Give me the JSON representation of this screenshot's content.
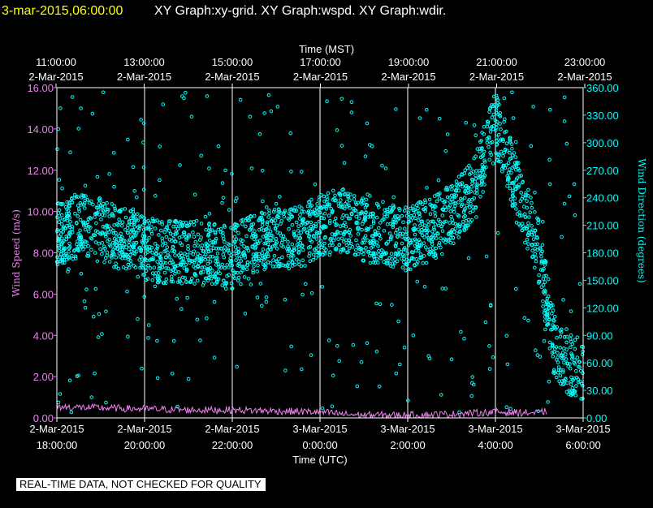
{
  "header": {
    "date": "3-mar-2015,06:00:00",
    "title": "XY Graph:xy-grid.  XY Graph:wspd.  XY Graph:wdir."
  },
  "banner": "REAL-TIME DATA, NOT CHECKED FOR QUALITY",
  "colors": {
    "background": "#000000",
    "frame": "#ffffff",
    "header_date": "#ffff00",
    "speed": "#ee82ee",
    "direction": "#00ffff",
    "grid": "#ffffff"
  },
  "chart_data": {
    "type": "scatter",
    "grid": "vertical",
    "x_top": {
      "label": "Time (MST)",
      "ticks": [
        {
          "time": "11:00:00",
          "date": "2-Mar-2015"
        },
        {
          "time": "13:00:00",
          "date": "2-Mar-2015"
        },
        {
          "time": "15:00:00",
          "date": "2-Mar-2015"
        },
        {
          "time": "17:00:00",
          "date": "2-Mar-2015"
        },
        {
          "time": "19:00:00",
          "date": "2-Mar-2015"
        },
        {
          "time": "21:00:00",
          "date": "2-Mar-2015"
        },
        {
          "time": "23:00:00",
          "date": "2-Mar-2015"
        }
      ]
    },
    "x_bottom": {
      "label": "Time (UTC)",
      "range": [
        "2015-03-02T18:00",
        "2015-03-03T06:00"
      ],
      "ticks": [
        {
          "date": "2-Mar-2015",
          "time": "18:00:00"
        },
        {
          "date": "2-Mar-2015",
          "time": "20:00:00"
        },
        {
          "date": "2-Mar-2015",
          "time": "22:00:00"
        },
        {
          "date": "3-Mar-2015",
          "time": "0:00:00"
        },
        {
          "date": "3-Mar-2015",
          "time": "2:00:00"
        },
        {
          "date": "3-Mar-2015",
          "time": "4:00:00"
        },
        {
          "date": "3-Mar-2015",
          "time": "6:00:00"
        }
      ]
    },
    "y_left": {
      "label": "Wind Speed (m/s)",
      "range": [
        0,
        16
      ],
      "ticks": [
        "0.00",
        "2.00",
        "4.00",
        "6.00",
        "8.00",
        "10.00",
        "12.00",
        "14.00",
        "16.00"
      ]
    },
    "y_right": {
      "label": "Wind Direction (degrees)",
      "range": [
        0,
        360
      ],
      "ticks": [
        "0.00",
        "30.00",
        "60.00",
        "90.00",
        "120.00",
        "150.00",
        "180.00",
        "210.00",
        "240.00",
        "270.00",
        "300.00",
        "330.00",
        "360.00"
      ]
    },
    "series": [
      {
        "key": "wspd",
        "axis": "left",
        "style": "line",
        "x": [
          "2015-03-02T18:00",
          "2015-03-02T19:00",
          "2015-03-02T20:00",
          "2015-03-02T21:00",
          "2015-03-02T22:00",
          "2015-03-02T23:00",
          "2015-03-03T00:00",
          "2015-03-03T00:30",
          "2015-03-03T01:00",
          "2015-03-03T02:00",
          "2015-03-03T03:00",
          "2015-03-03T04:00",
          "2015-03-03T05:00",
          "2015-03-03T05:10"
        ],
        "values": [
          0.5,
          0.45,
          0.4,
          0.35,
          0.35,
          0.3,
          0.25,
          0.15,
          0.1,
          0.1,
          0.15,
          0.25,
          0.2,
          0.3
        ]
      },
      {
        "key": "wdir",
        "axis": "right",
        "style": "markers",
        "x": [
          "2015-03-02T18:00",
          "2015-03-02T18:30",
          "2015-03-02T19:00",
          "2015-03-02T19:30",
          "2015-03-02T20:00",
          "2015-03-02T20:30",
          "2015-03-02T21:00",
          "2015-03-02T21:30",
          "2015-03-02T22:00",
          "2015-03-02T22:30",
          "2015-03-02T23:00",
          "2015-03-02T23:30",
          "2015-03-03T00:00",
          "2015-03-03T00:30",
          "2015-03-03T01:00",
          "2015-03-03T01:30",
          "2015-03-03T02:00",
          "2015-03-03T02:30",
          "2015-03-03T03:00",
          "2015-03-03T03:30",
          "2015-03-03T04:00",
          "2015-03-03T04:30",
          "2015-03-03T05:00",
          "2015-03-03T05:20",
          "2015-03-03T05:40",
          "2015-03-03T06:00"
        ],
        "values": [
          200,
          210,
          205,
          195,
          185,
          180,
          182,
          178,
          175,
          190,
          200,
          195,
          210,
          215,
          205,
          200,
          195,
          205,
          220,
          250,
          320,
          250,
          180,
          80,
          60,
          50
        ]
      }
    ]
  }
}
